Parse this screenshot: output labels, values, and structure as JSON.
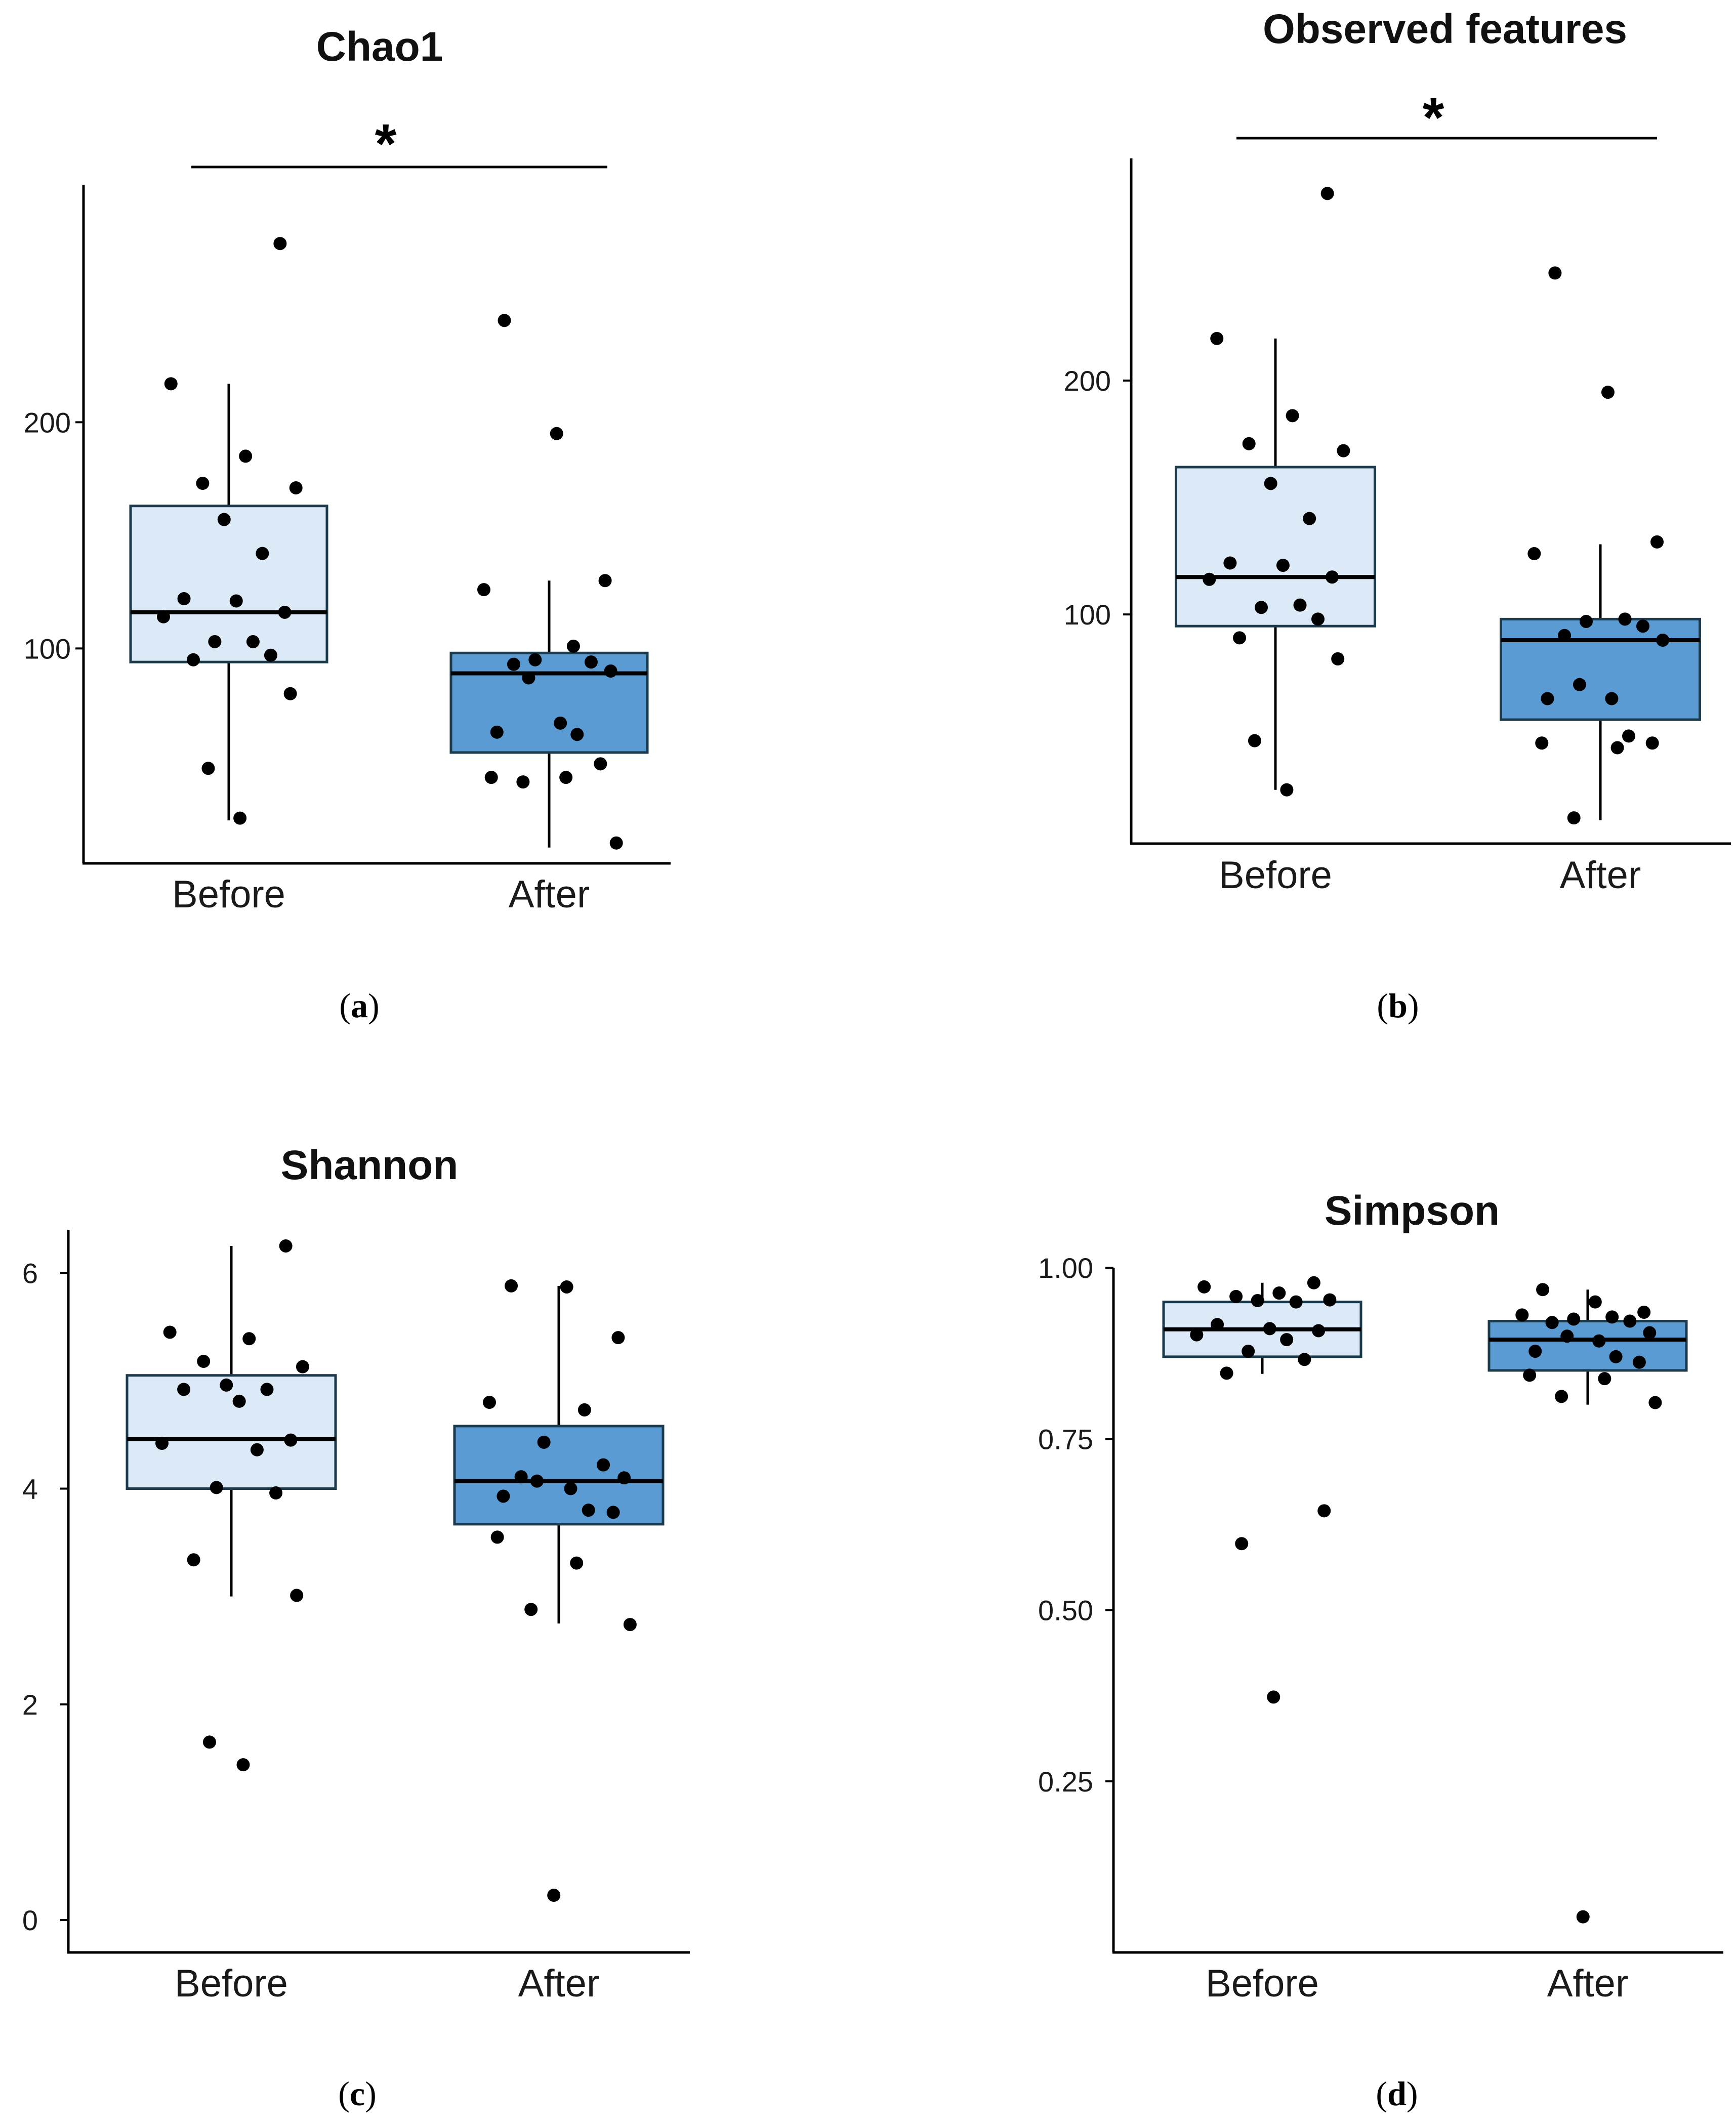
{
  "colors": {
    "before_fill": "#dce9f7",
    "after_fill": "#5b9bd3",
    "stroke": "#1b3a4b",
    "point": "#000000",
    "axis": "#000000"
  },
  "chart_data": [
    {
      "id": "a",
      "type": "box",
      "title": "Chao1",
      "caption_letter": "a",
      "categories": [
        "Before",
        "After"
      ],
      "y_ticks": [
        100,
        200
      ],
      "y_tick_labels": [
        "100",
        "200"
      ],
      "ylim": [
        5,
        305
      ],
      "significance": "*",
      "boxes": [
        {
          "q1": 94,
          "median": 116,
          "q3": 163,
          "whisker_low": 24,
          "whisker_high": 217
        },
        {
          "q1": 54,
          "median": 89,
          "q3": 98,
          "whisker_low": 12,
          "whisker_high": 130
        }
      ],
      "points": [
        [
          279,
          217,
          185,
          173,
          171,
          157,
          142,
          122,
          121,
          116,
          114,
          103,
          103,
          97,
          95,
          80,
          47,
          25
        ],
        [
          245,
          195,
          130,
          126,
          101,
          95,
          94,
          93,
          90,
          87,
          67,
          63,
          62,
          49,
          43,
          43,
          41,
          14
        ]
      ]
    },
    {
      "id": "b",
      "type": "box",
      "title": "Observed features",
      "caption_letter": "b",
      "categories": [
        "Before",
        "After"
      ],
      "y_ticks": [
        100,
        200
      ],
      "y_tick_labels": [
        "100",
        "200"
      ],
      "ylim": [
        2,
        295
      ],
      "significance": "*",
      "boxes": [
        {
          "q1": 95,
          "median": 116,
          "q3": 163,
          "whisker_low": 25,
          "whisker_high": 218
        },
        {
          "q1": 55,
          "median": 89,
          "q3": 98,
          "whisker_low": 12,
          "whisker_high": 130
        }
      ],
      "points": [
        [
          280,
          218,
          185,
          173,
          170,
          156,
          141,
          122,
          121,
          116,
          115,
          104,
          103,
          98,
          90,
          81,
          46,
          25
        ],
        [
          246,
          195,
          131,
          126,
          98,
          97,
          95,
          91,
          89,
          70,
          64,
          64,
          48,
          45,
          45,
          43,
          13
        ]
      ]
    },
    {
      "id": "c",
      "type": "box",
      "title": "Shannon",
      "caption_letter": "c",
      "categories": [
        "Before",
        "After"
      ],
      "y_ticks": [
        0,
        2,
        4,
        6
      ],
      "y_tick_labels": [
        "0",
        "2",
        "4",
        "6"
      ],
      "ylim": [
        -0.3,
        6.4
      ],
      "significance": "",
      "boxes": [
        {
          "q1": 4.0,
          "median": 4.46,
          "q3": 5.05,
          "whisker_low": 3.0,
          "whisker_high": 6.25
        },
        {
          "q1": 3.67,
          "median": 4.07,
          "q3": 4.58,
          "whisker_low": 2.75,
          "whisker_high": 5.88
        }
      ],
      "points": [
        [
          6.25,
          5.45,
          5.39,
          5.18,
          5.13,
          4.96,
          4.92,
          4.92,
          4.81,
          4.45,
          4.42,
          4.36,
          4.01,
          3.96,
          3.34,
          3.01,
          1.65,
          1.44
        ],
        [
          5.88,
          5.87,
          5.4,
          4.8,
          4.73,
          4.43,
          4.22,
          4.11,
          4.1,
          4.07,
          4.0,
          3.93,
          3.8,
          3.78,
          3.55,
          3.31,
          2.88,
          2.74,
          0.23
        ]
      ]
    },
    {
      "id": "d",
      "type": "box",
      "title": "Simpson",
      "caption_letter": "d",
      "categories": [
        "Before",
        "After"
      ],
      "y_ticks": [
        0.25,
        0.5,
        0.75,
        1.0
      ],
      "y_tick_labels": [
        "0.25",
        "0.50",
        "0.75",
        "1.00"
      ],
      "ylim": [
        0.0,
        1.0
      ],
      "significance": "",
      "boxes": [
        {
          "q1": 0.87,
          "median": 0.91,
          "q3": 0.95,
          "whisker_low": 0.845,
          "whisker_high": 0.978
        },
        {
          "q1": 0.85,
          "median": 0.895,
          "q3": 0.922,
          "whisker_low": 0.8,
          "whisker_high": 0.968
        }
      ],
      "points": [
        [
          0.978,
          0.972,
          0.963,
          0.958,
          0.953,
          0.952,
          0.95,
          0.917,
          0.911,
          0.908,
          0.902,
          0.895,
          0.878,
          0.866,
          0.846,
          0.645,
          0.597,
          0.373
        ],
        [
          0.968,
          0.95,
          0.935,
          0.931,
          0.928,
          0.925,
          0.922,
          0.92,
          0.905,
          0.9,
          0.893,
          0.878,
          0.87,
          0.862,
          0.843,
          0.838,
          0.812,
          0.803,
          0.052
        ]
      ]
    }
  ]
}
